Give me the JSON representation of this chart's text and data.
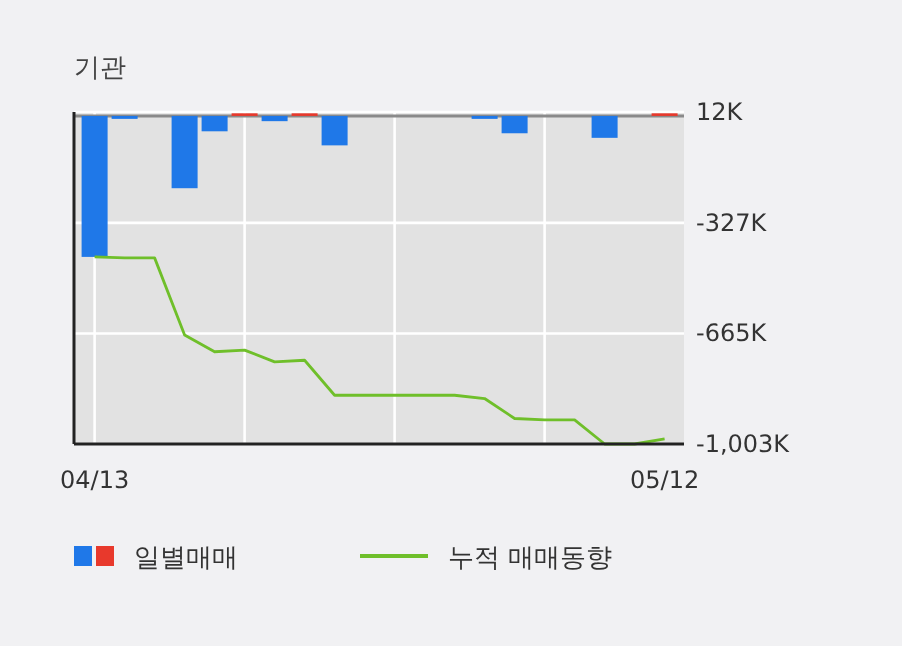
{
  "chart_data": {
    "type": "bar",
    "title": "기관",
    "categories": [
      "04/13",
      null,
      null,
      null,
      null,
      null,
      null,
      null,
      null,
      null,
      null,
      null,
      null,
      null,
      null,
      null,
      null,
      null,
      null,
      "05/12"
    ],
    "series": [
      {
        "type": "bar",
        "name": "일별매매",
        "colors": [
          "#1f78e8",
          "#1f78e8",
          "#1f78e8",
          "#1f78e8",
          "#1f78e8",
          "#e8392c",
          "#1f78e8",
          "#e8392c",
          "#1f78e8",
          "#1f78e8",
          "#1f78e8",
          "#1f78e8",
          "#1f78e8",
          "#1f78e8",
          "#1f78e8",
          "#1f78e8",
          "#1f78e8",
          "#1f78e8",
          "#1f78e8",
          "#e8392c"
        ],
        "values": [
          -431,
          -9,
          null,
          -221,
          -47,
          8,
          -16,
          8,
          -90,
          null,
          null,
          null,
          null,
          -9,
          -53,
          null,
          null,
          -67,
          null,
          8
        ]
      },
      {
        "type": "line",
        "name": "누적 매매동향",
        "color": "#6fbf2a",
        "values": [
          -431,
          -434,
          -434,
          -670,
          -721,
          -716,
          -752,
          -747,
          -854,
          -854,
          -854,
          -854,
          -854,
          -864,
          -925,
          -929,
          -929,
          -1003,
          -1003,
          -987
        ]
      }
    ],
    "ylim": [
      -1003,
      12
    ],
    "yticks": [
      {
        "value": 12,
        "label": "12K"
      },
      {
        "value": -327,
        "label": "-327K"
      },
      {
        "value": -665,
        "label": "-665K"
      },
      {
        "value": -1003,
        "label": "-1,003K"
      }
    ],
    "grid": true,
    "legend": "bottom"
  }
}
